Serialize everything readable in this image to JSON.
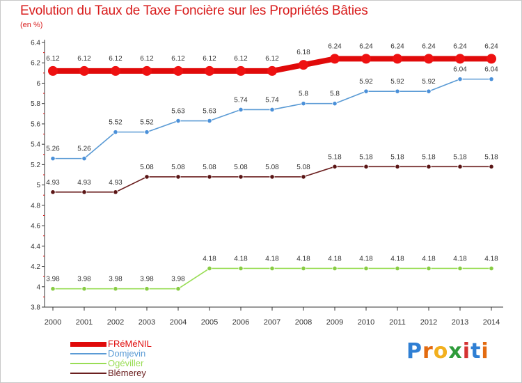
{
  "title": "Evolution du Taux de Taxe Foncière sur les Propriétés Bâties",
  "unit_label": "(en %)",
  "logo_text": "Proxiti",
  "chart_data": {
    "type": "line",
    "title": "Evolution du Taux de Taxe Foncière sur les Propriétés Bâties",
    "ylabel": "(en %)",
    "xlabel": "",
    "ylim": [
      3.8,
      6.4
    ],
    "grid": false,
    "legend_position": "bottom-left",
    "categories": [
      "2000",
      "2001",
      "2002",
      "2003",
      "2004",
      "2005",
      "2006",
      "2007",
      "2008",
      "2009",
      "2010",
      "2011",
      "2012",
      "2013",
      "2014"
    ],
    "y_ticks": [
      3.8,
      4.0,
      4.2,
      4.4,
      4.6,
      4.8,
      5.0,
      5.2,
      5.4,
      5.6,
      5.8,
      6.0,
      6.2,
      6.4
    ],
    "y_tick_labels": [
      "3.8",
      "4",
      "4.2",
      "4.4",
      "4.6",
      "4.8",
      "5",
      "5.2",
      "5.4",
      "5.6",
      "5.8",
      "6",
      "6.2",
      "6.4"
    ],
    "series": [
      {
        "name": "FRéMéNIL",
        "color": "#e00a0a",
        "point_color": "#ee1111",
        "emphasis": true,
        "label_color": "#333333",
        "values": [
          6.12,
          6.12,
          6.12,
          6.12,
          6.12,
          6.12,
          6.12,
          6.12,
          6.18,
          6.24,
          6.24,
          6.24,
          6.24,
          6.24,
          6.24
        ],
        "labels": [
          "6.12",
          "6.12",
          "6.12",
          "6.12",
          "6.12",
          "6.12",
          "6.12",
          "6.12",
          "6.18",
          "6.24",
          "6.24",
          "6.24",
          "6.24",
          "6.24",
          "6.24"
        ]
      },
      {
        "name": "Domjevin",
        "color": "#5b9bd5",
        "point_color": "#4a90d9",
        "emphasis": false,
        "label_color": "#333333",
        "values": [
          5.26,
          5.26,
          5.52,
          5.52,
          5.63,
          5.63,
          5.74,
          5.74,
          5.8,
          5.8,
          5.92,
          5.92,
          5.92,
          6.04,
          6.04
        ],
        "labels": [
          "5.26",
          "5.26",
          "5.52",
          "5.52",
          "5.63",
          "5.63",
          "5.74",
          "5.74",
          "5.8",
          "5.8",
          "5.92",
          "5.92",
          "5.92",
          "6.04",
          "6.04"
        ]
      },
      {
        "name": "Ogéviller",
        "color": "#99dd55",
        "point_color": "#88cc44",
        "emphasis": false,
        "label_color": "#333333",
        "values": [
          3.98,
          3.98,
          3.98,
          3.98,
          3.98,
          4.18,
          4.18,
          4.18,
          4.18,
          4.18,
          4.18,
          4.18,
          4.18,
          4.18,
          4.18
        ],
        "labels": [
          "3.98",
          "3.98",
          "3.98",
          "3.98",
          "3.98",
          "4.18",
          "4.18",
          "4.18",
          "4.18",
          "4.18",
          "4.18",
          "4.18",
          "4.18",
          "4.18",
          "4.18"
        ]
      },
      {
        "name": "Blémerey",
        "color": "#6b1f1f",
        "point_color": "#5a1515",
        "emphasis": false,
        "label_color": "#333333",
        "values": [
          4.93,
          4.93,
          4.93,
          5.08,
          5.08,
          5.08,
          5.08,
          5.08,
          5.08,
          5.18,
          5.18,
          5.18,
          5.18,
          5.18,
          5.18
        ],
        "labels": [
          "4.93",
          "4.93",
          "4.93",
          "5.08",
          "5.08",
          "5.08",
          "5.08",
          "5.08",
          "5.08",
          "5.18",
          "5.18",
          "5.18",
          "5.18",
          "5.18",
          "5.18"
        ]
      }
    ]
  }
}
